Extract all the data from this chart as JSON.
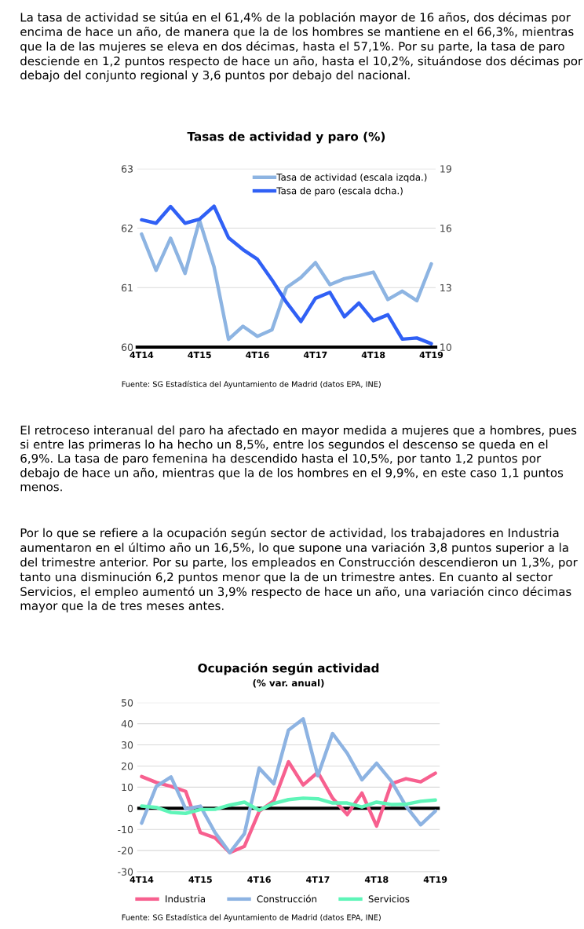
{
  "chart_data": [
    {
      "type": "line",
      "title": "Tasas de actividad y paro (%)",
      "categories": [
        "4T14",
        null,
        null,
        null,
        "4T15",
        null,
        null,
        null,
        "4T16",
        null,
        null,
        null,
        "4T17",
        null,
        null,
        null,
        "4T18",
        null,
        null,
        null,
        "4T19"
      ],
      "series": [
        {
          "name": "Tasa de actividad (escala izqda.)",
          "color": "#8db4e2",
          "values": [
            61.9,
            61.29,
            61.83,
            61.24,
            62.13,
            61.35,
            60.13,
            60.35,
            60.18,
            60.29,
            61.0,
            61.17,
            61.42,
            61.05,
            61.15,
            61.2,
            61.26,
            60.8,
            60.94,
            60.78,
            61.4
          ]
        },
        {
          "name": "Tasa de paro (escala dcha.)",
          "color": "#3060f5",
          "axis": "y2",
          "values": [
            16.42,
            16.25,
            17.09,
            16.25,
            16.45,
            17.11,
            15.52,
            14.92,
            14.43,
            13.39,
            12.26,
            11.29,
            12.46,
            12.76,
            11.53,
            12.22,
            11.33,
            11.63,
            10.4,
            10.46,
            10.17
          ]
        }
      ],
      "ylim": [
        60,
        63
      ],
      "yticks": [
        60,
        61,
        62,
        63
      ],
      "y2lim": [
        10,
        19
      ],
      "y2ticks": [
        10,
        13,
        16,
        19
      ],
      "grid": "y",
      "legend": "top right",
      "line_style": "solid",
      "annotations": [
        "La tasa de actividad se sitúa en el 61,4% de la población mayor de 16 años, dos décimas por encima de hace un año, de manera que la de los hombres se mantiene en el 66,3%, mientras que la de las mujeres se eleva en dos décimas, hasta el 57,1%. Por su parte, la tasa de paro desciende en 1,2 puntos respecto de hace un año, hasta el 10,2%, situándose dos décimas por debajo del conjunto regional y 3,6 puntos por debajo del nacional.",
        "Fuente: SG Estadística del Ayuntamiento de Madrid (datos EPA, INE)"
      ]
    },
    {
      "type": "line",
      "title": "Ocupación según actividad",
      "subtitle": "(% var. anual)",
      "categories": [
        "4T14",
        null,
        null,
        null,
        "4T15",
        null,
        null,
        null,
        "4T16",
        null,
        null,
        null,
        "4T17",
        null,
        null,
        null,
        "4T18",
        null,
        null,
        null,
        "4T19"
      ],
      "series": [
        {
          "name": "Industria",
          "color": "#f7608f",
          "values": [
            15,
            12.2,
            10.4,
            8,
            -11.5,
            -14,
            -21,
            -18,
            -1.5,
            3.5,
            22,
            11,
            17,
            4.8,
            -3,
            7.2,
            -8.4,
            11.6,
            14,
            12.5,
            16.6
          ]
        },
        {
          "name": "Construcción",
          "color": "#8db3e2",
          "values": [
            -7,
            10.4,
            14.8,
            -0.3,
            1,
            -11.5,
            -21,
            -12,
            19,
            11.6,
            37,
            42.3,
            15.4,
            35.4,
            26,
            13.5,
            21.3,
            12.9,
            1,
            -7.8,
            -1.3
          ]
        },
        {
          "name": "Servicios",
          "color": "#5ef5b8",
          "values": [
            1,
            0.4,
            -2,
            -2.4,
            -0.6,
            -0.5,
            1.5,
            2.9,
            -0.9,
            2.3,
            4.1,
            4.8,
            4.5,
            2.5,
            2.5,
            0.6,
            2.9,
            1.8,
            1.9,
            3.3,
            3.9
          ]
        }
      ],
      "ylim": [
        -30,
        50
      ],
      "yticks": [
        -30,
        -20,
        -10,
        0,
        10,
        20,
        30,
        40,
        50
      ],
      "grid": "y",
      "legend": "bottom",
      "line_style": "solid",
      "ref_lines": [
        {
          "axis": "y",
          "value": 0,
          "label": null,
          "color": "#000000"
        }
      ],
      "annotations": [
        "El retroceso interanual del paro ha afectado en mayor medida a mujeres que a hombres, pues si entre las primeras lo ha hecho un 8,5%, entre los segundos el descenso se queda en el 6,9%. La tasa de paro femenina ha descendido hasta el 10,5%, por tanto 1,2 puntos por debajo de hace un año, mientras que la de los hombres en el 9,9%, en este caso 1,1 puntos menos.",
        "Por lo que se refiere a la ocupación según sector de actividad, los trabajadores en Industria aumentaron en el último año un 16,5%, lo que supone una variación 3,8 puntos superior a la del trimestre anterior. Por su parte, los empleados en Construcción descendieron un 1,3%, por tanto una disminución 6,2 puntos menor que la de un trimestre antes. En cuanto al sector Servicios, el empleo aumentó un 3,9% respecto de hace un año, una variación cinco décimas mayor que la de tres meses antes.",
        "Fuente: SG Estadística del Ayuntamiento de Madrid (datos EPA, INE)"
      ]
    }
  ]
}
